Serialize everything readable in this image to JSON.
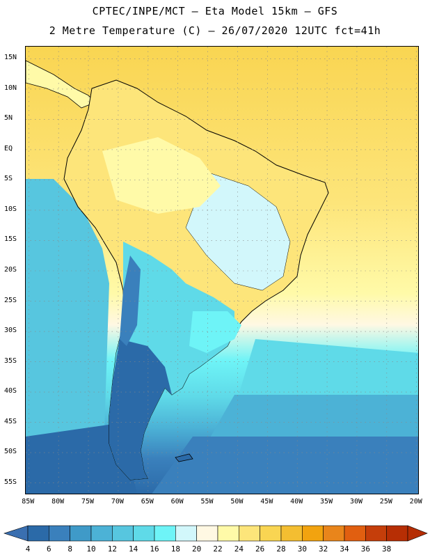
{
  "header": {
    "line1": "CPTEC/INPE/MCT –  Eta Model 15km – GFS",
    "line2": "2 Metre Temperature (C) – 26/07/2020 12UTC fct=41h"
  },
  "map": {
    "lat_labels": [
      "15N",
      "10N",
      "5N",
      "EQ",
      "5S",
      "10S",
      "15S",
      "20S",
      "25S",
      "30S",
      "35S",
      "40S",
      "45S",
      "50S",
      "55S"
    ],
    "lon_labels": [
      "85W",
      "80W",
      "75W",
      "70W",
      "65W",
      "60W",
      "55W",
      "50W",
      "45W",
      "40W",
      "35W",
      "30W",
      "25W",
      "20W"
    ],
    "lat_range": [
      17,
      -57
    ],
    "lon_range": [
      -85.5,
      -19.5
    ]
  },
  "colorbar": {
    "labels": [
      "4",
      "6",
      "8",
      "10",
      "12",
      "14",
      "16",
      "18",
      "20",
      "22",
      "24",
      "26",
      "28",
      "30",
      "32",
      "34",
      "36",
      "38"
    ],
    "colors": [
      "#2b6aa8",
      "#3a80bc",
      "#3f9ac8",
      "#4cb2d6",
      "#57c6df",
      "#5fdae8",
      "#6ef4f7",
      "#d2f7fb",
      "#fff8e3",
      "#fffaa8",
      "#fde57a",
      "#f9d552",
      "#f4be31",
      "#f2a30f",
      "#e9851b",
      "#e15f10",
      "#c53e0a",
      "#b72e04"
    ],
    "under_color": "#3a6fb0",
    "over_color": "#b52d03"
  }
}
